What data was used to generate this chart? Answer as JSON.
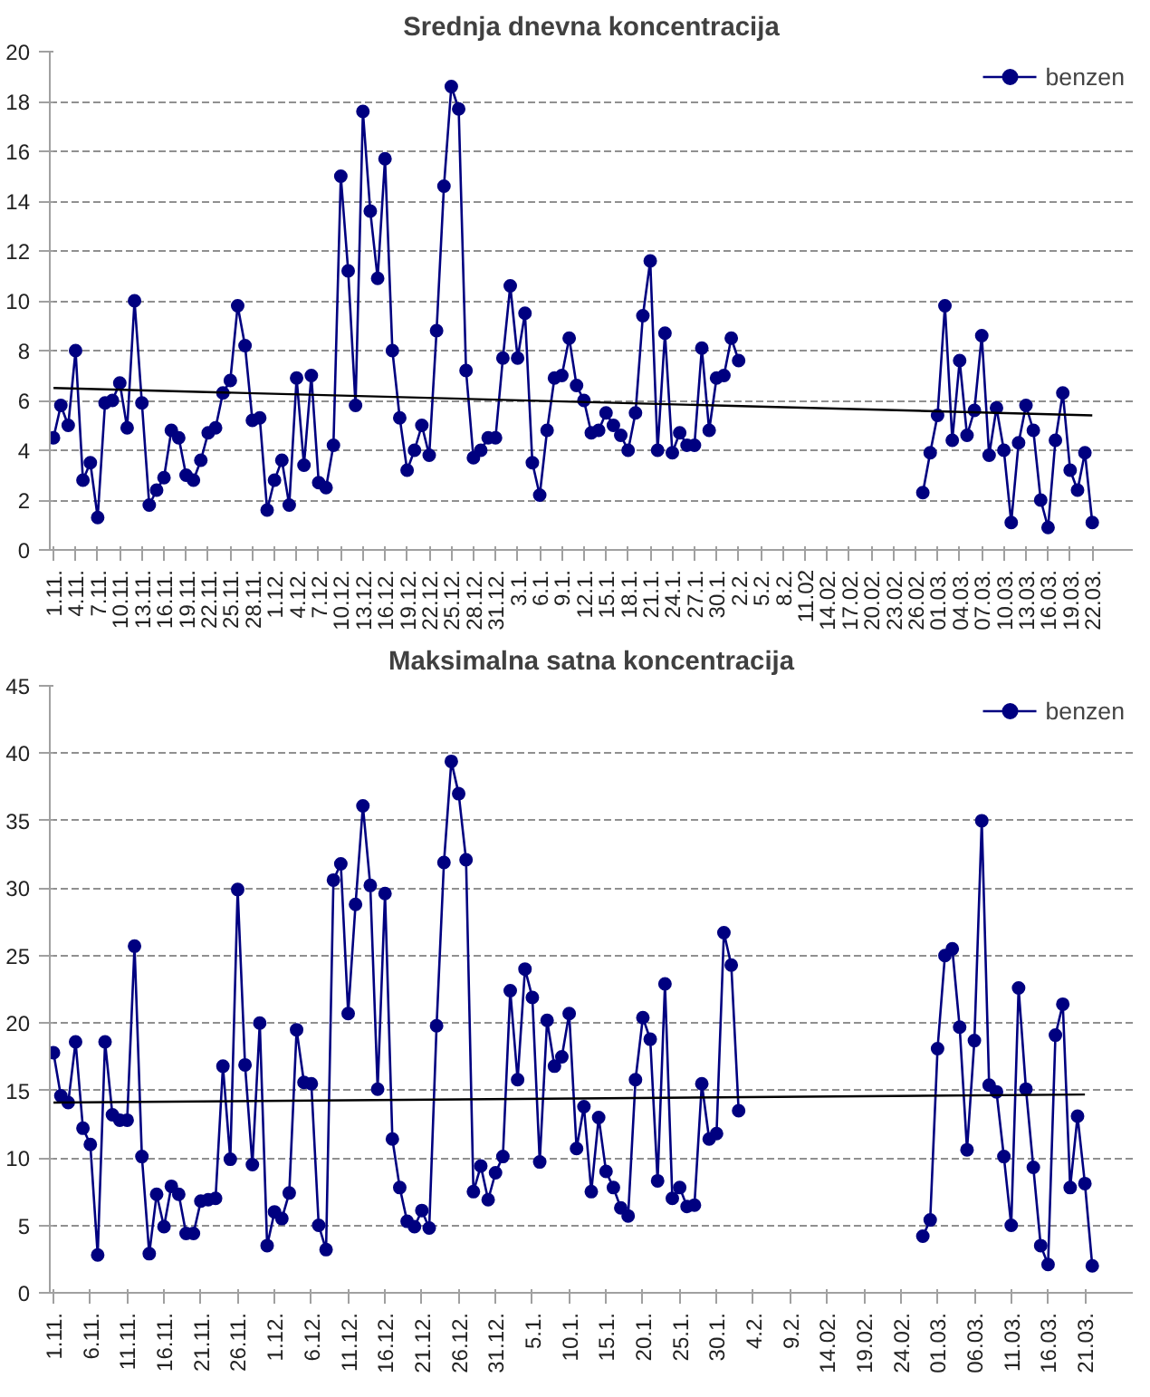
{
  "chart_data": [
    {
      "type": "line",
      "title": "Srednja dnevna koncentracija",
      "grid": "y",
      "legend": "top right",
      "marker": "circle",
      "line_style": "solid",
      "ylim": [
        0,
        20
      ],
      "yticks": [
        0,
        2,
        4,
        6,
        8,
        10,
        12,
        14,
        16,
        18,
        20
      ],
      "categories": [
        "1.11.",
        null,
        null,
        "4.11.",
        null,
        null,
        "7.11.",
        null,
        null,
        "10.11.",
        null,
        null,
        "13.11.",
        null,
        null,
        "16.11.",
        null,
        null,
        "19.11.",
        null,
        null,
        "22.11.",
        null,
        null,
        "25.11.",
        null,
        null,
        "28.11.",
        null,
        null,
        "1.12.",
        null,
        null,
        "4.12.",
        null,
        null,
        "7.12.",
        null,
        null,
        "10.12.",
        null,
        null,
        "13.12.",
        null,
        null,
        "16.12.",
        null,
        null,
        "19.12.",
        null,
        null,
        "22.12.",
        null,
        null,
        "25.12.",
        null,
        null,
        "28.12.",
        null,
        null,
        "31.12.",
        null,
        null,
        "3.1.",
        null,
        null,
        "6.1.",
        null,
        null,
        "9.1.",
        null,
        null,
        "12.1.",
        null,
        null,
        "15.1.",
        null,
        null,
        "18.1.",
        null,
        null,
        "21.1.",
        null,
        null,
        "24.1.",
        null,
        null,
        "27.1.",
        null,
        null,
        "30.1.",
        null,
        null,
        "2.2.",
        null,
        null,
        "5.2.",
        null,
        null,
        "8.2.",
        null,
        null,
        "11.02",
        null,
        null,
        "14.02.",
        null,
        null,
        "17.02.",
        null,
        null,
        "20.02.",
        null,
        null,
        "23.02.",
        null,
        null,
        "26.02.",
        null,
        null,
        "01.03.",
        null,
        null,
        "04.03.",
        null,
        null,
        "07.03.",
        null,
        null,
        "10.03.",
        null,
        null,
        "13.03.",
        null,
        null,
        "16.03.",
        null,
        null,
        "19.03.",
        null,
        null,
        "22.03.",
        null,
        null,
        null,
        null,
        null
      ],
      "series": [
        {
          "name": "benzen",
          "color": "#000080",
          "values": [
            4.5,
            5.8,
            5.0,
            8.0,
            2.8,
            3.5,
            1.3,
            5.9,
            6.0,
            6.7,
            4.9,
            10.0,
            5.9,
            1.8,
            2.4,
            2.9,
            4.8,
            4.5,
            3.0,
            2.8,
            3.6,
            4.7,
            4.9,
            6.3,
            6.8,
            9.8,
            8.2,
            5.2,
            5.3,
            1.6,
            2.8,
            3.6,
            1.8,
            6.9,
            3.4,
            7.0,
            2.7,
            2.5,
            4.2,
            15.0,
            11.2,
            5.8,
            17.6,
            13.6,
            10.9,
            15.7,
            8.0,
            5.3,
            3.2,
            4.0,
            5.0,
            3.8,
            8.8,
            14.6,
            18.6,
            17.7,
            7.2,
            3.7,
            4.0,
            4.5,
            4.5,
            7.7,
            10.6,
            7.7,
            9.5,
            3.5,
            2.2,
            4.8,
            6.9,
            7.0,
            8.5,
            6.6,
            6.0,
            4.7,
            4.8,
            5.5,
            5.0,
            4.6,
            4.0,
            5.5,
            9.4,
            11.6,
            4.0,
            8.7,
            3.9,
            4.7,
            4.2,
            4.2,
            8.1,
            4.8,
            6.9,
            7.0,
            8.5,
            7.6,
            null,
            null,
            null,
            null,
            null,
            null,
            null,
            null,
            null,
            null,
            null,
            null,
            null,
            null,
            null,
            null,
            null,
            null,
            null,
            null,
            null,
            null,
            null,
            null,
            2.3,
            3.9,
            5.4,
            9.8,
            4.4,
            7.6,
            4.6,
            5.6,
            8.6,
            3.8,
            5.7,
            4.0,
            1.1,
            4.3,
            5.8,
            4.8,
            2.0,
            0.9,
            4.4,
            6.3,
            3.2,
            2.4,
            3.9,
            1.1,
            null,
            null,
            null,
            null,
            null
          ]
        },
        {
          "type": "line",
          "color": "#000000",
          "marker": "none",
          "x": [
            "1.11.",
            "22.03."
          ],
          "values": [
            6.5,
            5.4
          ]
        }
      ]
    },
    {
      "type": "line",
      "title": "Maksimalna satna koncentracija",
      "grid": "y",
      "legend": "top right",
      "marker": "circle",
      "line_style": "solid",
      "ylim": [
        0,
        45
      ],
      "yticks": [
        0,
        5,
        10,
        15,
        20,
        25,
        30,
        35,
        40,
        45
      ],
      "categories": [
        "1.11.",
        null,
        null,
        null,
        null,
        "6.11.",
        null,
        null,
        null,
        null,
        "11.11.",
        null,
        null,
        null,
        null,
        "16.11.",
        null,
        null,
        null,
        null,
        "21.11.",
        null,
        null,
        null,
        null,
        "26.11.",
        null,
        null,
        null,
        null,
        "1.12.",
        null,
        null,
        null,
        null,
        "6.12.",
        null,
        null,
        null,
        null,
        "11.12.",
        null,
        null,
        null,
        null,
        "16.12.",
        null,
        null,
        null,
        null,
        "21.12.",
        null,
        null,
        null,
        null,
        "26.12.",
        null,
        null,
        null,
        null,
        "31.12.",
        null,
        null,
        null,
        null,
        "5.1.",
        null,
        null,
        null,
        null,
        "10.1.",
        null,
        null,
        null,
        null,
        "15.1.",
        null,
        null,
        null,
        null,
        "20.1.",
        null,
        null,
        null,
        null,
        "25.1.",
        null,
        null,
        null,
        null,
        "30.1.",
        null,
        null,
        null,
        null,
        "4.2.",
        null,
        null,
        null,
        null,
        "9.2.",
        null,
        null,
        null,
        null,
        "14.02.",
        null,
        null,
        null,
        null,
        "19.02.",
        null,
        null,
        null,
        null,
        "24.02.",
        null,
        null,
        null,
        null,
        "01.03.",
        null,
        null,
        null,
        null,
        "06.03.",
        null,
        null,
        null,
        null,
        "11.03.",
        null,
        null,
        null,
        null,
        "16.03.",
        null,
        null,
        null,
        null,
        "21.03.",
        null,
        null,
        null,
        null,
        null,
        null
      ],
      "series": [
        {
          "name": "benzen",
          "color": "#000080",
          "values": [
            17.8,
            14.6,
            14.1,
            18.6,
            12.2,
            11.0,
            2.8,
            18.6,
            13.2,
            12.8,
            12.8,
            25.7,
            10.1,
            2.9,
            7.3,
            4.9,
            7.9,
            7.3,
            4.4,
            4.4,
            6.8,
            6.9,
            7.0,
            16.8,
            9.9,
            29.9,
            16.9,
            9.5,
            20.0,
            3.5,
            6.0,
            5.5,
            7.4,
            19.5,
            15.6,
            15.5,
            5.0,
            3.2,
            30.6,
            31.8,
            20.7,
            28.8,
            36.1,
            30.2,
            15.1,
            29.6,
            11.4,
            7.8,
            5.3,
            4.9,
            6.1,
            4.8,
            19.8,
            31.9,
            39.4,
            37.0,
            32.1,
            7.5,
            9.4,
            6.9,
            8.9,
            10.1,
            22.4,
            15.8,
            24.0,
            21.9,
            9.7,
            20.2,
            16.8,
            17.5,
            20.7,
            10.7,
            13.8,
            7.5,
            13.0,
            9.0,
            7.8,
            6.3,
            5.7,
            15.8,
            20.4,
            18.8,
            8.3,
            22.9,
            7.0,
            7.8,
            6.4,
            6.5,
            15.5,
            11.4,
            11.8,
            26.7,
            24.3,
            13.5,
            null,
            null,
            null,
            null,
            null,
            null,
            null,
            null,
            null,
            null,
            null,
            null,
            null,
            null,
            null,
            null,
            null,
            null,
            null,
            null,
            null,
            null,
            null,
            null,
            4.2,
            5.4,
            18.1,
            25.0,
            25.5,
            19.7,
            10.6,
            18.7,
            35.0,
            15.4,
            14.9,
            10.1,
            5.0,
            22.6,
            15.1,
            9.3,
            3.5,
            2.1,
            19.1,
            21.4,
            7.8,
            13.1,
            8.1,
            2.0,
            null,
            null,
            null,
            null,
            null
          ]
        },
        {
          "type": "line",
          "color": "#000000",
          "marker": "none",
          "x": [
            "1.11.",
            "21.03."
          ],
          "values": [
            14.1,
            14.7
          ]
        }
      ]
    }
  ]
}
